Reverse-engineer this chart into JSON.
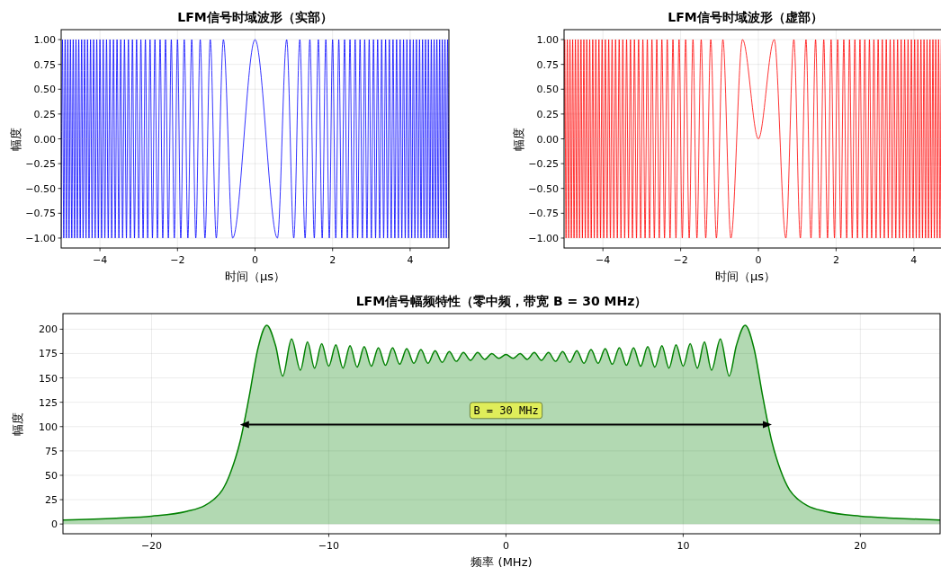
{
  "chart_data": [
    {
      "type": "line",
      "title": "LFM信号时域波形（实部）",
      "xlabel": "时间（μs）",
      "ylabel": "幅度",
      "grid": true,
      "xlim": [
        -5,
        5
      ],
      "ylim": [
        -1.1,
        1.1
      ],
      "xticks": [
        {
          "value": -4,
          "label": "−4"
        },
        {
          "value": -2,
          "label": "−2"
        },
        0,
        2,
        4
      ],
      "yticks": [
        {
          "value": -1,
          "label": "−1.00"
        },
        {
          "value": -0.75,
          "label": "−0.75"
        },
        {
          "value": -0.5,
          "label": "−0.50"
        },
        {
          "value": -0.25,
          "label": "−0.25"
        },
        {
          "value": 0,
          "label": "0.00"
        },
        {
          "value": 0.25,
          "label": "0.25"
        },
        {
          "value": 0.5,
          "label": "0.50"
        },
        {
          "value": 0.75,
          "label": "0.75"
        },
        {
          "value": 1,
          "label": "1.00"
        }
      ],
      "series": [
        {
          "color": "#0000ff",
          "x": [
            -5,
            -4.967,
            -4.933,
            -4.899,
            -4.865,
            -4.83,
            -4.796,
            -4.761,
            -4.726,
            -4.69,
            -4.655,
            -4.619,
            -4.583,
            -4.546,
            -4.509,
            -4.472,
            -4.435,
            -4.397,
            -4.359,
            -4.32,
            -4.282,
            -4.243,
            -4.203,
            -4.163,
            -4.123,
            -4.082,
            -4.041,
            -4,
            -3.958,
            -3.916,
            -3.873,
            -3.83,
            -3.786,
            -3.742,
            -3.697,
            -3.651,
            -3.606,
            -3.559,
            -3.512,
            -3.464,
            -3.416,
            -3.367,
            -3.317,
            -3.266,
            -3.215,
            -3.162,
            -3.109,
            -3.055,
            -3,
            -2.944,
            -2.887,
            -2.828,
            -2.769,
            -2.708,
            -2.646,
            -2.582,
            -2.517,
            -2.449,
            -2.38,
            -2.309,
            -2.236,
            -2.16,
            -2.082,
            -2,
            -1.915,
            -1.826,
            -1.732,
            -1.633,
            -1.528,
            -1.414,
            -1.291,
            -1.155,
            -1,
            -0.816,
            -0.577,
            0,
            0.577,
            0.816,
            1,
            1.155,
            1.291,
            1.414,
            1.528,
            1.633,
            1.732,
            1.826,
            1.915,
            2,
            2.082,
            2.16,
            2.236,
            2.309,
            2.38,
            2.449,
            2.517,
            2.582,
            2.646,
            2.708,
            2.769,
            2.828,
            2.887,
            2.944,
            3,
            3.055,
            3.109,
            3.162,
            3.215,
            3.266,
            3.317,
            3.367,
            3.416,
            3.464,
            3.512,
            3.559,
            3.606,
            3.651,
            3.697,
            3.742,
            3.786,
            3.83,
            3.873,
            3.916,
            3.958,
            4,
            4.041,
            4.082,
            4.123,
            4.163,
            4.203,
            4.243,
            4.282,
            4.32,
            4.359,
            4.397,
            4.435,
            4.472,
            4.509,
            4.546,
            4.583,
            4.619,
            4.655,
            4.69,
            4.726,
            4.761,
            4.796,
            4.83,
            4.865,
            4.899,
            4.933,
            4.967,
            5
          ],
          "values": [
            -1,
            1,
            -1,
            1,
            -1,
            1,
            -1,
            1,
            -1,
            1,
            -1,
            1,
            -1,
            1,
            -1,
            1,
            -1,
            1,
            -1,
            1,
            -1,
            1,
            -1,
            1,
            -1,
            1,
            -1,
            1,
            -1,
            1,
            -1,
            1,
            -1,
            1,
            -1,
            1,
            -1,
            1,
            -1,
            1,
            -1,
            1,
            -1,
            1,
            -1,
            1,
            -1,
            1,
            -1,
            1,
            -1,
            1,
            -1,
            1,
            -1,
            1,
            -1,
            1,
            -1,
            1,
            -1,
            1,
            -1,
            1,
            -1,
            1,
            -1,
            1,
            -1,
            1,
            -1,
            1,
            -1,
            1,
            -1,
            1,
            -1,
            1,
            -1,
            1,
            -1,
            1,
            -1,
            1,
            -1,
            1,
            -1,
            1,
            -1,
            1,
            -1,
            1,
            -1,
            1,
            -1,
            1,
            -1,
            1,
            -1,
            1,
            -1,
            1,
            -1,
            1,
            -1,
            1,
            -1,
            1,
            -1,
            1,
            -1,
            1,
            -1,
            1,
            -1,
            1,
            -1,
            1,
            -1,
            1,
            -1,
            1,
            -1,
            1,
            -1,
            1,
            -1,
            1,
            -1,
            1,
            -1,
            1,
            -1,
            1,
            -1,
            1,
            -1,
            1,
            -1,
            1,
            -1,
            1,
            -1,
            1,
            -1,
            1,
            -1,
            1,
            -1,
            1,
            -1
          ]
        }
      ]
    },
    {
      "type": "line",
      "title": "LFM信号时域波形（虚部）",
      "xlabel": "时间（μs）",
      "ylabel": "幅度",
      "grid": true,
      "xlim": [
        -5,
        5
      ],
      "ylim": [
        -1.1,
        1.1
      ],
      "xticks": [
        {
          "value": -4,
          "label": "−4"
        },
        {
          "value": -2,
          "label": "−2"
        },
        0,
        2,
        4
      ],
      "yticks": [
        {
          "value": -1,
          "label": "−1.00"
        },
        {
          "value": -0.75,
          "label": "−0.75"
        },
        {
          "value": -0.5,
          "label": "−0.50"
        },
        {
          "value": -0.25,
          "label": "−0.25"
        },
        {
          "value": 0,
          "label": "0.00"
        },
        {
          "value": 0.25,
          "label": "0.25"
        },
        {
          "value": 0.5,
          "label": "0.50"
        },
        {
          "value": 0.75,
          "label": "0.75"
        },
        {
          "value": 1,
          "label": "1.00"
        }
      ],
      "series": [
        {
          "color": "#ff0000",
          "x": [
            -5,
            -4.983,
            -4.95,
            -4.916,
            -4.882,
            -4.848,
            -4.813,
            -4.778,
            -4.743,
            -4.708,
            -4.673,
            -4.637,
            -4.601,
            -4.564,
            -4.528,
            -4.491,
            -4.453,
            -4.416,
            -4.378,
            -4.34,
            -4.301,
            -4.262,
            -4.223,
            -4.183,
            -4.143,
            -4.103,
            -4.062,
            -4.021,
            -3.979,
            -3.937,
            -3.894,
            -3.851,
            -3.808,
            -3.764,
            -3.719,
            -3.674,
            -3.629,
            -3.582,
            -3.536,
            -3.488,
            -3.44,
            -3.391,
            -3.342,
            -3.291,
            -3.24,
            -3.189,
            -3.136,
            -3.082,
            -3.028,
            -2.972,
            -2.915,
            -2.858,
            -2.799,
            -2.739,
            -2.677,
            -2.614,
            -2.55,
            -2.483,
            -2.415,
            -2.345,
            -2.273,
            -2.198,
            -2.121,
            -2.041,
            -1.958,
            -1.871,
            -1.78,
            -1.683,
            -1.581,
            -1.472,
            -1.354,
            -1.225,
            -1.08,
            -0.913,
            -0.707,
            -0.408,
            0,
            0.408,
            0.707,
            0.913,
            1.08,
            1.225,
            1.354,
            1.472,
            1.581,
            1.683,
            1.78,
            1.871,
            1.958,
            2.041,
            2.121,
            2.198,
            2.273,
            2.345,
            2.415,
            2.483,
            2.55,
            2.614,
            2.677,
            2.739,
            2.799,
            2.858,
            2.915,
            2.972,
            3.028,
            3.082,
            3.136,
            3.189,
            3.24,
            3.291,
            3.342,
            3.391,
            3.44,
            3.488,
            3.536,
            3.582,
            3.629,
            3.674,
            3.719,
            3.764,
            3.808,
            3.851,
            3.894,
            3.937,
            3.979,
            4.021,
            4.062,
            4.103,
            4.143,
            4.183,
            4.223,
            4.262,
            4.301,
            4.34,
            4.378,
            4.416,
            4.453,
            4.491,
            4.528,
            4.564,
            4.601,
            4.637,
            4.673,
            4.708,
            4.743
          ],
          "values": [
            0,
            1,
            -1,
            1,
            -1,
            1,
            -1,
            1,
            -1,
            1,
            -1,
            1,
            -1,
            1,
            -1,
            1,
            -1,
            1,
            -1,
            1,
            -1,
            1,
            -1,
            1,
            -1,
            1,
            -1,
            1,
            -1,
            1,
            -1,
            1,
            -1,
            1,
            -1,
            1,
            -1,
            1,
            -1,
            1,
            -1,
            1,
            -1,
            1,
            -1,
            1,
            -1,
            1,
            -1,
            1,
            -1,
            1,
            -1,
            1,
            -1,
            1,
            -1,
            1,
            -1,
            1,
            -1,
            1,
            -1,
            1,
            -1,
            1,
            -1,
            1,
            -1,
            1,
            -1,
            1,
            -1,
            1,
            -1,
            1,
            0,
            1,
            -1,
            1,
            -1,
            1,
            -1,
            1,
            -1,
            1,
            -1,
            1,
            -1,
            1,
            -1,
            1,
            -1,
            1,
            -1,
            1,
            -1,
            1,
            -1,
            1,
            -1,
            1,
            -1,
            1,
            -1,
            1,
            -1,
            1,
            -1,
            1,
            -1,
            1,
            -1,
            1,
            -1,
            1,
            -1,
            1,
            -1,
            1,
            -1,
            1,
            -1,
            1,
            -1,
            1,
            -1,
            1,
            -1,
            1,
            -1,
            1,
            -1,
            1,
            -1,
            1,
            -1,
            1,
            -1,
            1,
            -1,
            1,
            -1,
            1,
            -1
          ]
        }
      ]
    },
    {
      "type": "area",
      "title": "LFM信号幅频特性（零中频，带宽 B = 30 MHz）",
      "xlabel": "频率 (MHz)",
      "ylabel": "幅度",
      "grid": true,
      "xlim": [
        -25,
        24.5
      ],
      "ylim": [
        -10,
        216
      ],
      "xticks": [
        {
          "value": -20,
          "label": "−20"
        },
        {
          "value": -10,
          "label": "−10"
        },
        0,
        10,
        20
      ],
      "yticks": [
        0,
        25,
        50,
        75,
        100,
        125,
        150,
        175,
        200
      ],
      "series": [
        {
          "color": "#008000",
          "x": [
            -25,
            -22,
            -20,
            -18,
            -17,
            -16.5,
            -16,
            -15.5,
            -15,
            -14.5,
            -14,
            -13.5,
            -13,
            -12.6,
            -12.1,
            -11.6,
            -11.2,
            -10.8,
            -10.4,
            -10,
            -9.6,
            -9.2,
            -8.8,
            -8.4,
            -8,
            -7.6,
            -7.2,
            -6.8,
            -6.4,
            -6,
            -5.6,
            -5.2,
            -4.8,
            -4.4,
            -4,
            -3.6,
            -3.2,
            -2.8,
            -2.4,
            -2,
            -1.6,
            -1.2,
            -0.8,
            -0.4,
            0,
            0.4,
            0.8,
            1.2,
            1.6,
            2,
            2.4,
            2.8,
            3.2,
            3.6,
            4,
            4.4,
            4.8,
            5.2,
            5.6,
            6,
            6.4,
            6.8,
            7.2,
            7.6,
            8,
            8.4,
            8.8,
            9.2,
            9.6,
            10,
            10.4,
            10.8,
            11.2,
            11.6,
            12.1,
            12.6,
            13,
            13.5,
            14,
            14.5,
            15,
            15.5,
            16,
            16.5,
            17,
            18,
            20,
            22,
            24.5
          ],
          "values": [
            4,
            6,
            8,
            13,
            19,
            25,
            35,
            55,
            85,
            130,
            180,
            204,
            183,
            152,
            190,
            158,
            187,
            160,
            185,
            162,
            184,
            160,
            183,
            161,
            182,
            162,
            181,
            163,
            181,
            164,
            180,
            165,
            179,
            165,
            178,
            166,
            177,
            167,
            176,
            168,
            176,
            169,
            175,
            170,
            174,
            170,
            175,
            169,
            176,
            168,
            176,
            167,
            177,
            166,
            178,
            165,
            179,
            165,
            180,
            164,
            181,
            163,
            181,
            162,
            182,
            161,
            183,
            160,
            184,
            162,
            185,
            160,
            187,
            158,
            190,
            152,
            183,
            204,
            180,
            130,
            85,
            55,
            35,
            25,
            19,
            13,
            8,
            6,
            4
          ]
        },
        {
          "type": "line",
          "color": "#000000",
          "x": [
            -14.5,
            14.5
          ],
          "values": [
            102,
            102
          ]
        }
      ],
      "annotations": [
        "B = 30 MHz"
      ]
    }
  ]
}
